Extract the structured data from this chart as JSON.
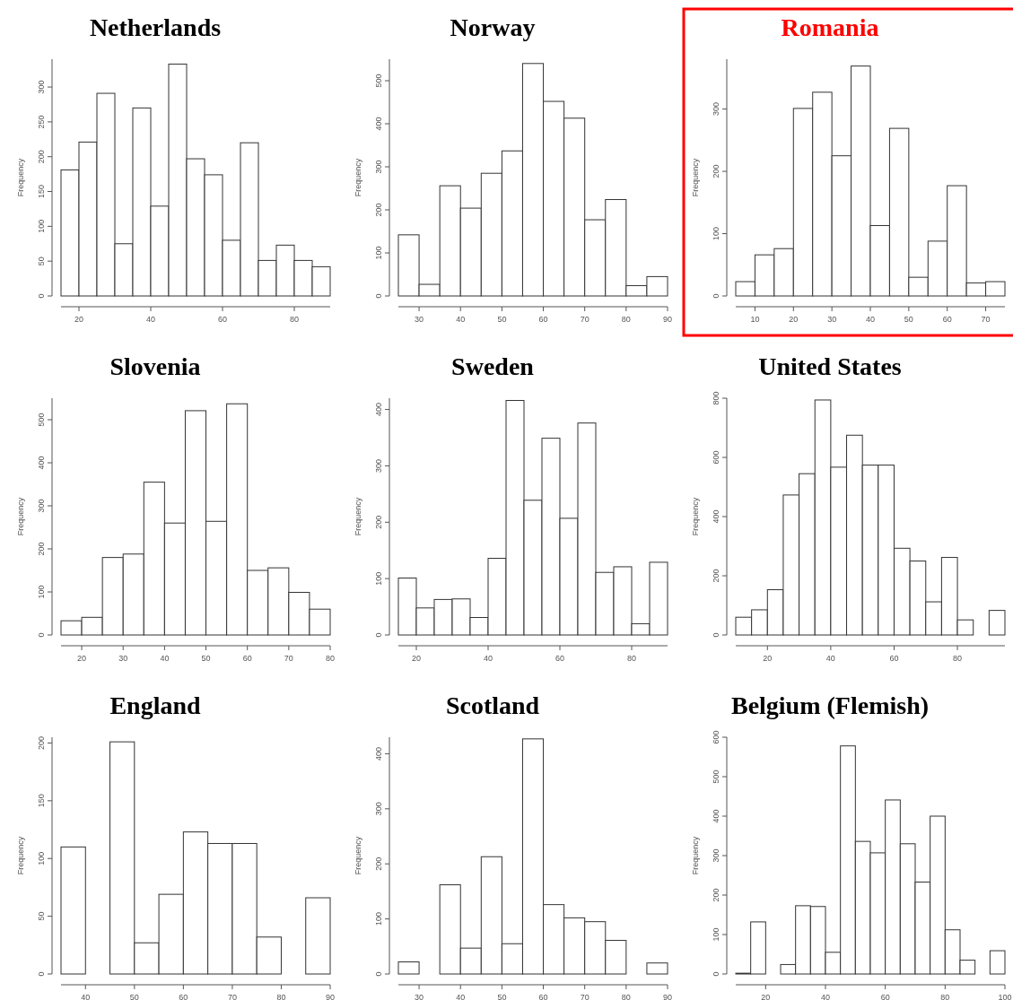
{
  "chart_data": [
    {
      "type": "histogram",
      "title": "Netherlands",
      "ylabel": "Frequency",
      "bins": [
        15,
        20,
        25,
        30,
        35,
        40,
        45,
        50,
        55,
        60,
        65,
        70,
        75,
        80,
        85,
        90
      ],
      "values": [
        181,
        221,
        291,
        75,
        270,
        129,
        333,
        197,
        174,
        80,
        220,
        51,
        73,
        51,
        42
      ],
      "xlim": [
        15,
        90
      ],
      "ylim": [
        0,
        340
      ],
      "xticks": [
        20,
        40,
        60,
        80
      ],
      "yticks": [
        0,
        50,
        100,
        150,
        200,
        250,
        300
      ],
      "color": "#ffffff",
      "grid": false
    },
    {
      "type": "histogram",
      "title": "Norway",
      "ylabel": "Frequency",
      "bins": [
        25,
        30,
        35,
        40,
        45,
        50,
        55,
        60,
        65,
        70,
        75,
        80,
        85,
        90
      ],
      "values": [
        142,
        27,
        256,
        204,
        285,
        337,
        540,
        452,
        413,
        177,
        224,
        24,
        45
      ],
      "xlim": [
        25,
        90
      ],
      "ylim": [
        0,
        550
      ],
      "xticks": [
        30,
        40,
        50,
        60,
        70,
        80,
        90
      ],
      "yticks": [
        0,
        100,
        200,
        300,
        400,
        500
      ],
      "color": "#ffffff",
      "grid": false
    },
    {
      "type": "histogram",
      "title": "Romania",
      "ylabel": "Frequency",
      "bins": [
        5,
        10,
        15,
        20,
        25,
        30,
        35,
        40,
        45,
        50,
        55,
        60,
        65,
        70,
        75
      ],
      "values": [
        23,
        66,
        76,
        301,
        327,
        225,
        369,
        113,
        269,
        30,
        88,
        177,
        21,
        23
      ],
      "xlim": [
        5,
        75
      ],
      "ylim": [
        0,
        380
      ],
      "xticks": [
        10,
        20,
        30,
        40,
        50,
        60,
        70
      ],
      "yticks": [
        0,
        100,
        200,
        300
      ],
      "color": "#ffffff",
      "grid": false
    },
    {
      "type": "histogram",
      "title": "Slovenia",
      "ylabel": "Frequency",
      "bins": [
        15,
        20,
        25,
        30,
        35,
        40,
        45,
        50,
        55,
        60,
        65,
        70,
        75,
        80
      ],
      "values": [
        33,
        41,
        180,
        188,
        355,
        260,
        521,
        264,
        537,
        150,
        156,
        99,
        60
      ],
      "xlim": [
        15,
        80
      ],
      "ylim": [
        0,
        550
      ],
      "xticks": [
        20,
        30,
        40,
        50,
        60,
        70,
        80
      ],
      "yticks": [
        0,
        100,
        200,
        300,
        400,
        500
      ],
      "color": "#ffffff",
      "grid": false
    },
    {
      "type": "histogram",
      "title": "Sweden",
      "ylabel": "Frequency",
      "bins": [
        15,
        20,
        25,
        30,
        35,
        40,
        45,
        50,
        55,
        60,
        65,
        70,
        75,
        80,
        85,
        90
      ],
      "values": [
        101,
        48,
        63,
        64,
        31,
        136,
        416,
        239,
        349,
        207,
        376,
        111,
        121,
        20,
        129
      ],
      "xlim": [
        15,
        90
      ],
      "ylim": [
        0,
        420
      ],
      "xticks": [
        20,
        40,
        60,
        80
      ],
      "yticks": [
        0,
        100,
        200,
        300,
        400
      ],
      "color": "#ffffff",
      "grid": false
    },
    {
      "type": "histogram",
      "title": "United States",
      "ylabel": "Frequency",
      "bins": [
        10,
        15,
        20,
        25,
        30,
        35,
        40,
        45,
        50,
        55,
        60,
        65,
        70,
        75,
        80,
        85,
        90,
        95
      ],
      "values": [
        60,
        85,
        153,
        473,
        545,
        794,
        567,
        675,
        574,
        574,
        293,
        250,
        112,
        262,
        51,
        0,
        83
      ],
      "xlim": [
        10,
        95
      ],
      "ylim": [
        0,
        800
      ],
      "xticks": [
        20,
        40,
        60,
        80
      ],
      "yticks": [
        0,
        200,
        400,
        600,
        800
      ],
      "color": "#ffffff",
      "grid": false
    },
    {
      "type": "histogram",
      "title": "England",
      "ylabel": "Frequency",
      "bins": [
        35,
        40,
        45,
        50,
        55,
        60,
        65,
        70,
        75,
        80,
        85,
        90
      ],
      "values": [
        110,
        0,
        201,
        27,
        69,
        123,
        113,
        113,
        32,
        0,
        66
      ],
      "xlim": [
        35,
        90
      ],
      "ylim": [
        0,
        205
      ],
      "xticks": [
        40,
        50,
        60,
        70,
        80,
        90
      ],
      "yticks": [
        0,
        50,
        100,
        150,
        200
      ],
      "color": "#ffffff",
      "grid": false
    },
    {
      "type": "histogram",
      "title": "Scotland",
      "ylabel": "Frequency",
      "bins": [
        25,
        30,
        35,
        40,
        45,
        50,
        55,
        60,
        65,
        70,
        75,
        80,
        85,
        90
      ],
      "values": [
        22,
        0,
        162,
        47,
        213,
        55,
        427,
        126,
        102,
        95,
        61,
        0,
        20
      ],
      "xlim": [
        25,
        90
      ],
      "ylim": [
        0,
        430
      ],
      "xticks": [
        30,
        40,
        50,
        60,
        70,
        80,
        90
      ],
      "yticks": [
        0,
        100,
        200,
        300,
        400
      ],
      "color": "#ffffff",
      "grid": false
    },
    {
      "type": "histogram",
      "title": "Belgium (Flemish)",
      "ylabel": "Frequency",
      "bins": [
        10,
        15,
        20,
        25,
        30,
        35,
        40,
        45,
        50,
        55,
        60,
        65,
        70,
        75,
        80,
        85,
        90,
        95,
        100
      ],
      "values": [
        2,
        132,
        0,
        24,
        173,
        171,
        55,
        578,
        336,
        307,
        441,
        330,
        233,
        400,
        112,
        35,
        0,
        59
      ],
      "xlim": [
        10,
        100
      ],
      "ylim": [
        0,
        600
      ],
      "xticks": [
        20,
        40,
        60,
        80,
        100
      ],
      "yticks": [
        0,
        100,
        200,
        300,
        400,
        500,
        600
      ],
      "color": "#ffffff",
      "grid": false
    }
  ]
}
